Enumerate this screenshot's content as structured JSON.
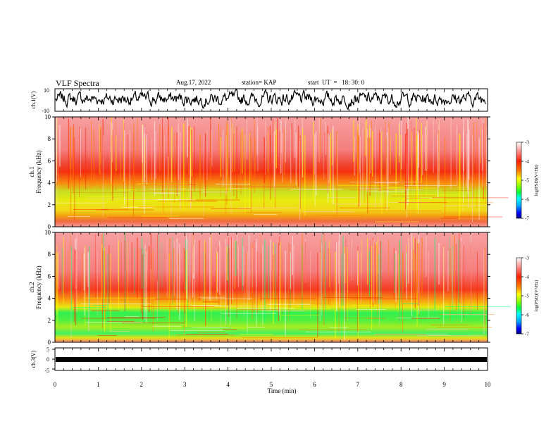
{
  "header": {
    "title": "VLF Spectra",
    "date": "Aug.17, 2022",
    "station": "station= KAP",
    "start": "start  UT  =   18: 30: 0"
  },
  "colors": {
    "spectrum_scale": [
      "#000080",
      "#0000ff",
      "#00a0ff",
      "#00ffff",
      "#00ff40",
      "#80ff00",
      "#ffff00",
      "#ff8000",
      "#ff2000",
      "#ff9090",
      "#ffffff"
    ]
  },
  "chart_data": [
    {
      "type": "line",
      "ylabel": "ch.1(V)",
      "ylim": [
        -10,
        10
      ],
      "yticks": [
        "10",
        "-10"
      ],
      "xlim": [
        0,
        10
      ],
      "description_level": "noisy waveform fluctuating between about -5 and 10"
    },
    {
      "type": "heatmap",
      "ylabel_channel": "ch.1",
      "ylabel": "Frequency  (kHz)",
      "ylim": [
        0,
        10
      ],
      "yticks": [
        "0",
        "2",
        "4",
        "6",
        "8",
        "10"
      ],
      "xlim": [
        0,
        10
      ],
      "colorbar": {
        "label": "log(PSD)(V²/Hz)",
        "ticks": [
          "-3",
          "-4",
          "-5",
          "-6",
          "-7"
        ],
        "range": [
          -7,
          -3
        ]
      }
    },
    {
      "type": "heatmap",
      "ylabel_channel": "ch.2",
      "ylabel": "Frequency  (kHz)",
      "ylim": [
        0,
        10
      ],
      "yticks": [
        "0",
        "2",
        "4",
        "6",
        "8",
        "10"
      ],
      "xlim": [
        0,
        10
      ],
      "colorbar": {
        "label": "log(PSD)(V²/Hz)",
        "ticks": [
          "-3",
          "-4",
          "-5",
          "-6",
          "-7"
        ],
        "range": [
          -7,
          -3
        ]
      }
    },
    {
      "type": "line",
      "ylabel": "ch.3(V)",
      "ylim": [
        -5,
        5
      ],
      "yticks": [
        "5",
        "0",
        "-5"
      ],
      "xlim": [
        0,
        10
      ],
      "xlabel": "Time  (min)",
      "xticks": [
        "0",
        "1",
        "2",
        "3",
        "4",
        "5",
        "6",
        "7",
        "8",
        "9",
        "10"
      ]
    }
  ]
}
